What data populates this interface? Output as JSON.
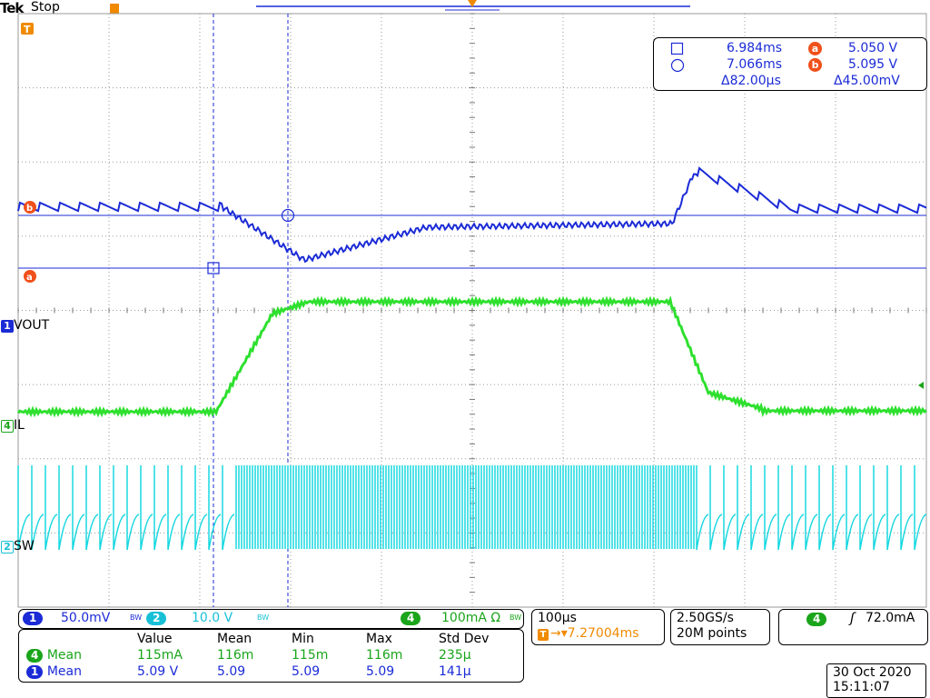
{
  "header": {
    "brand": "Tek",
    "state": "Stop"
  },
  "cursor_readout": {
    "time_a": "6.984ms",
    "time_b": "7.066ms",
    "delta_t": "Δ82.00µs",
    "val_a": "5.050 V",
    "val_b": "5.095 V",
    "delta_v": "Δ45.00mV",
    "marker_a": "a",
    "marker_b": "b"
  },
  "traces": {
    "ch1": {
      "num": "1",
      "name": "VOUT",
      "color": "#1b2bd6"
    },
    "ch4": {
      "num": "4",
      "name": "IL",
      "color": "#2ee02e"
    },
    "ch2": {
      "num": "2",
      "name": "SW",
      "color": "#18d8e0"
    }
  },
  "vertical": {
    "ch1_scale": "50.0mV",
    "ch1_bw": "BW",
    "ch2_scale": "10.0 V",
    "ch2_bw": "BW",
    "ch4_scale": "100mA Ω",
    "ch4_bw": "BW"
  },
  "horizontal": {
    "timebase": "100µs",
    "trigger_pos": "▾7.27004ms"
  },
  "acquisition": {
    "rate": "2.50GS/s",
    "points": "20M points"
  },
  "trigger": {
    "source": "4",
    "symbol": "ʃ",
    "level": "72.0mA"
  },
  "measurements": {
    "headers": [
      "Value",
      "Mean",
      "Min",
      "Max",
      "Std Dev"
    ],
    "rows": [
      {
        "ch": "4",
        "type": "Mean",
        "values": [
          "115mA",
          "116m",
          "115m",
          "116m",
          "235µ"
        ]
      },
      {
        "ch": "1",
        "type": "Mean",
        "values": [
          "5.09 V",
          "5.09",
          "5.09",
          "5.09",
          "141µ"
        ]
      }
    ]
  },
  "datetime": {
    "date": "30 Oct  2020",
    "time": "15:11:07"
  }
}
